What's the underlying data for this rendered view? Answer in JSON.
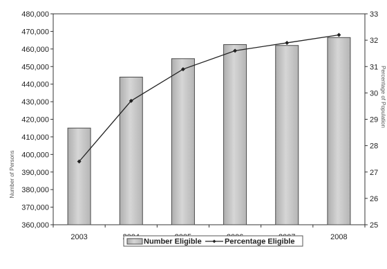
{
  "chart_data": {
    "type": "bar",
    "categories": [
      "2003",
      "2004",
      "2005",
      "2006",
      "2007",
      "2008"
    ],
    "series": [
      {
        "name": "Number Eligible",
        "type": "bar",
        "axis": "left",
        "values": [
          415000,
          444000,
          454500,
          462500,
          462000,
          466500
        ]
      },
      {
        "name": "Percentage Eligible",
        "type": "line",
        "axis": "right",
        "values": [
          27.4,
          29.7,
          30.9,
          31.6,
          31.9,
          32.2
        ]
      }
    ],
    "ylabel": "Number of Persons",
    "y2label": "Percentage of Population",
    "ylim": [
      360000,
      480000
    ],
    "y2lim": [
      25,
      33
    ],
    "yticks": [
      "360,000",
      "370,000",
      "380,000",
      "390,000",
      "400,000",
      "410,000",
      "420,000",
      "430,000",
      "440,000",
      "450,000",
      "460,000",
      "470,000",
      "480,000"
    ],
    "y2ticks": [
      "25",
      "26",
      "27",
      "28",
      "29",
      "30",
      "31",
      "32",
      "33"
    ],
    "grid": false,
    "legend_position": "bottom-center",
    "colors": {
      "bar_fill": "#c4c4c4",
      "bar_stroke": "#4a4a4a",
      "line": "#222222",
      "axis": "#333333"
    }
  },
  "legend": {
    "bar_label": "Number Eligible",
    "line_label": "Percentage Eligible"
  }
}
